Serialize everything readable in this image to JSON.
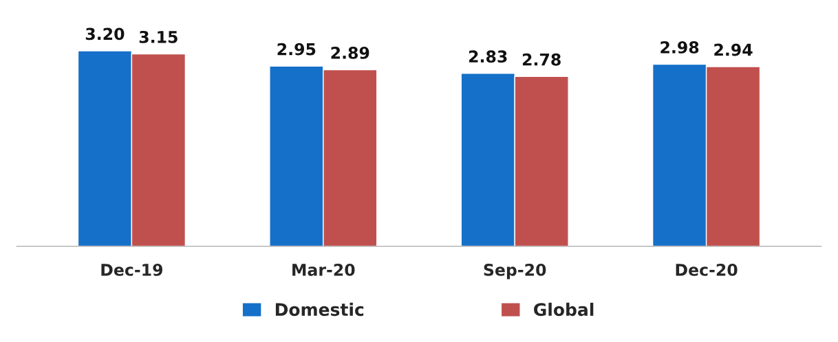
{
  "chart_data": {
    "type": "bar",
    "categories": [
      "Dec-19",
      "Mar-20",
      "Sep-20",
      "Dec-20"
    ],
    "series": [
      {
        "name": "Domestic",
        "color": "#1570c9",
        "values": [
          3.2,
          2.95,
          2.83,
          2.98
        ],
        "value_labels": [
          "3.20",
          "2.95",
          "2.83",
          "2.98"
        ]
      },
      {
        "name": "Global",
        "color": "#c0504d",
        "values": [
          3.15,
          2.89,
          2.78,
          2.94
        ],
        "value_labels": [
          "3.15",
          "2.89",
          "2.78",
          "2.94"
        ]
      }
    ],
    "tick_labels": "x",
    "legend": "bottom"
  }
}
